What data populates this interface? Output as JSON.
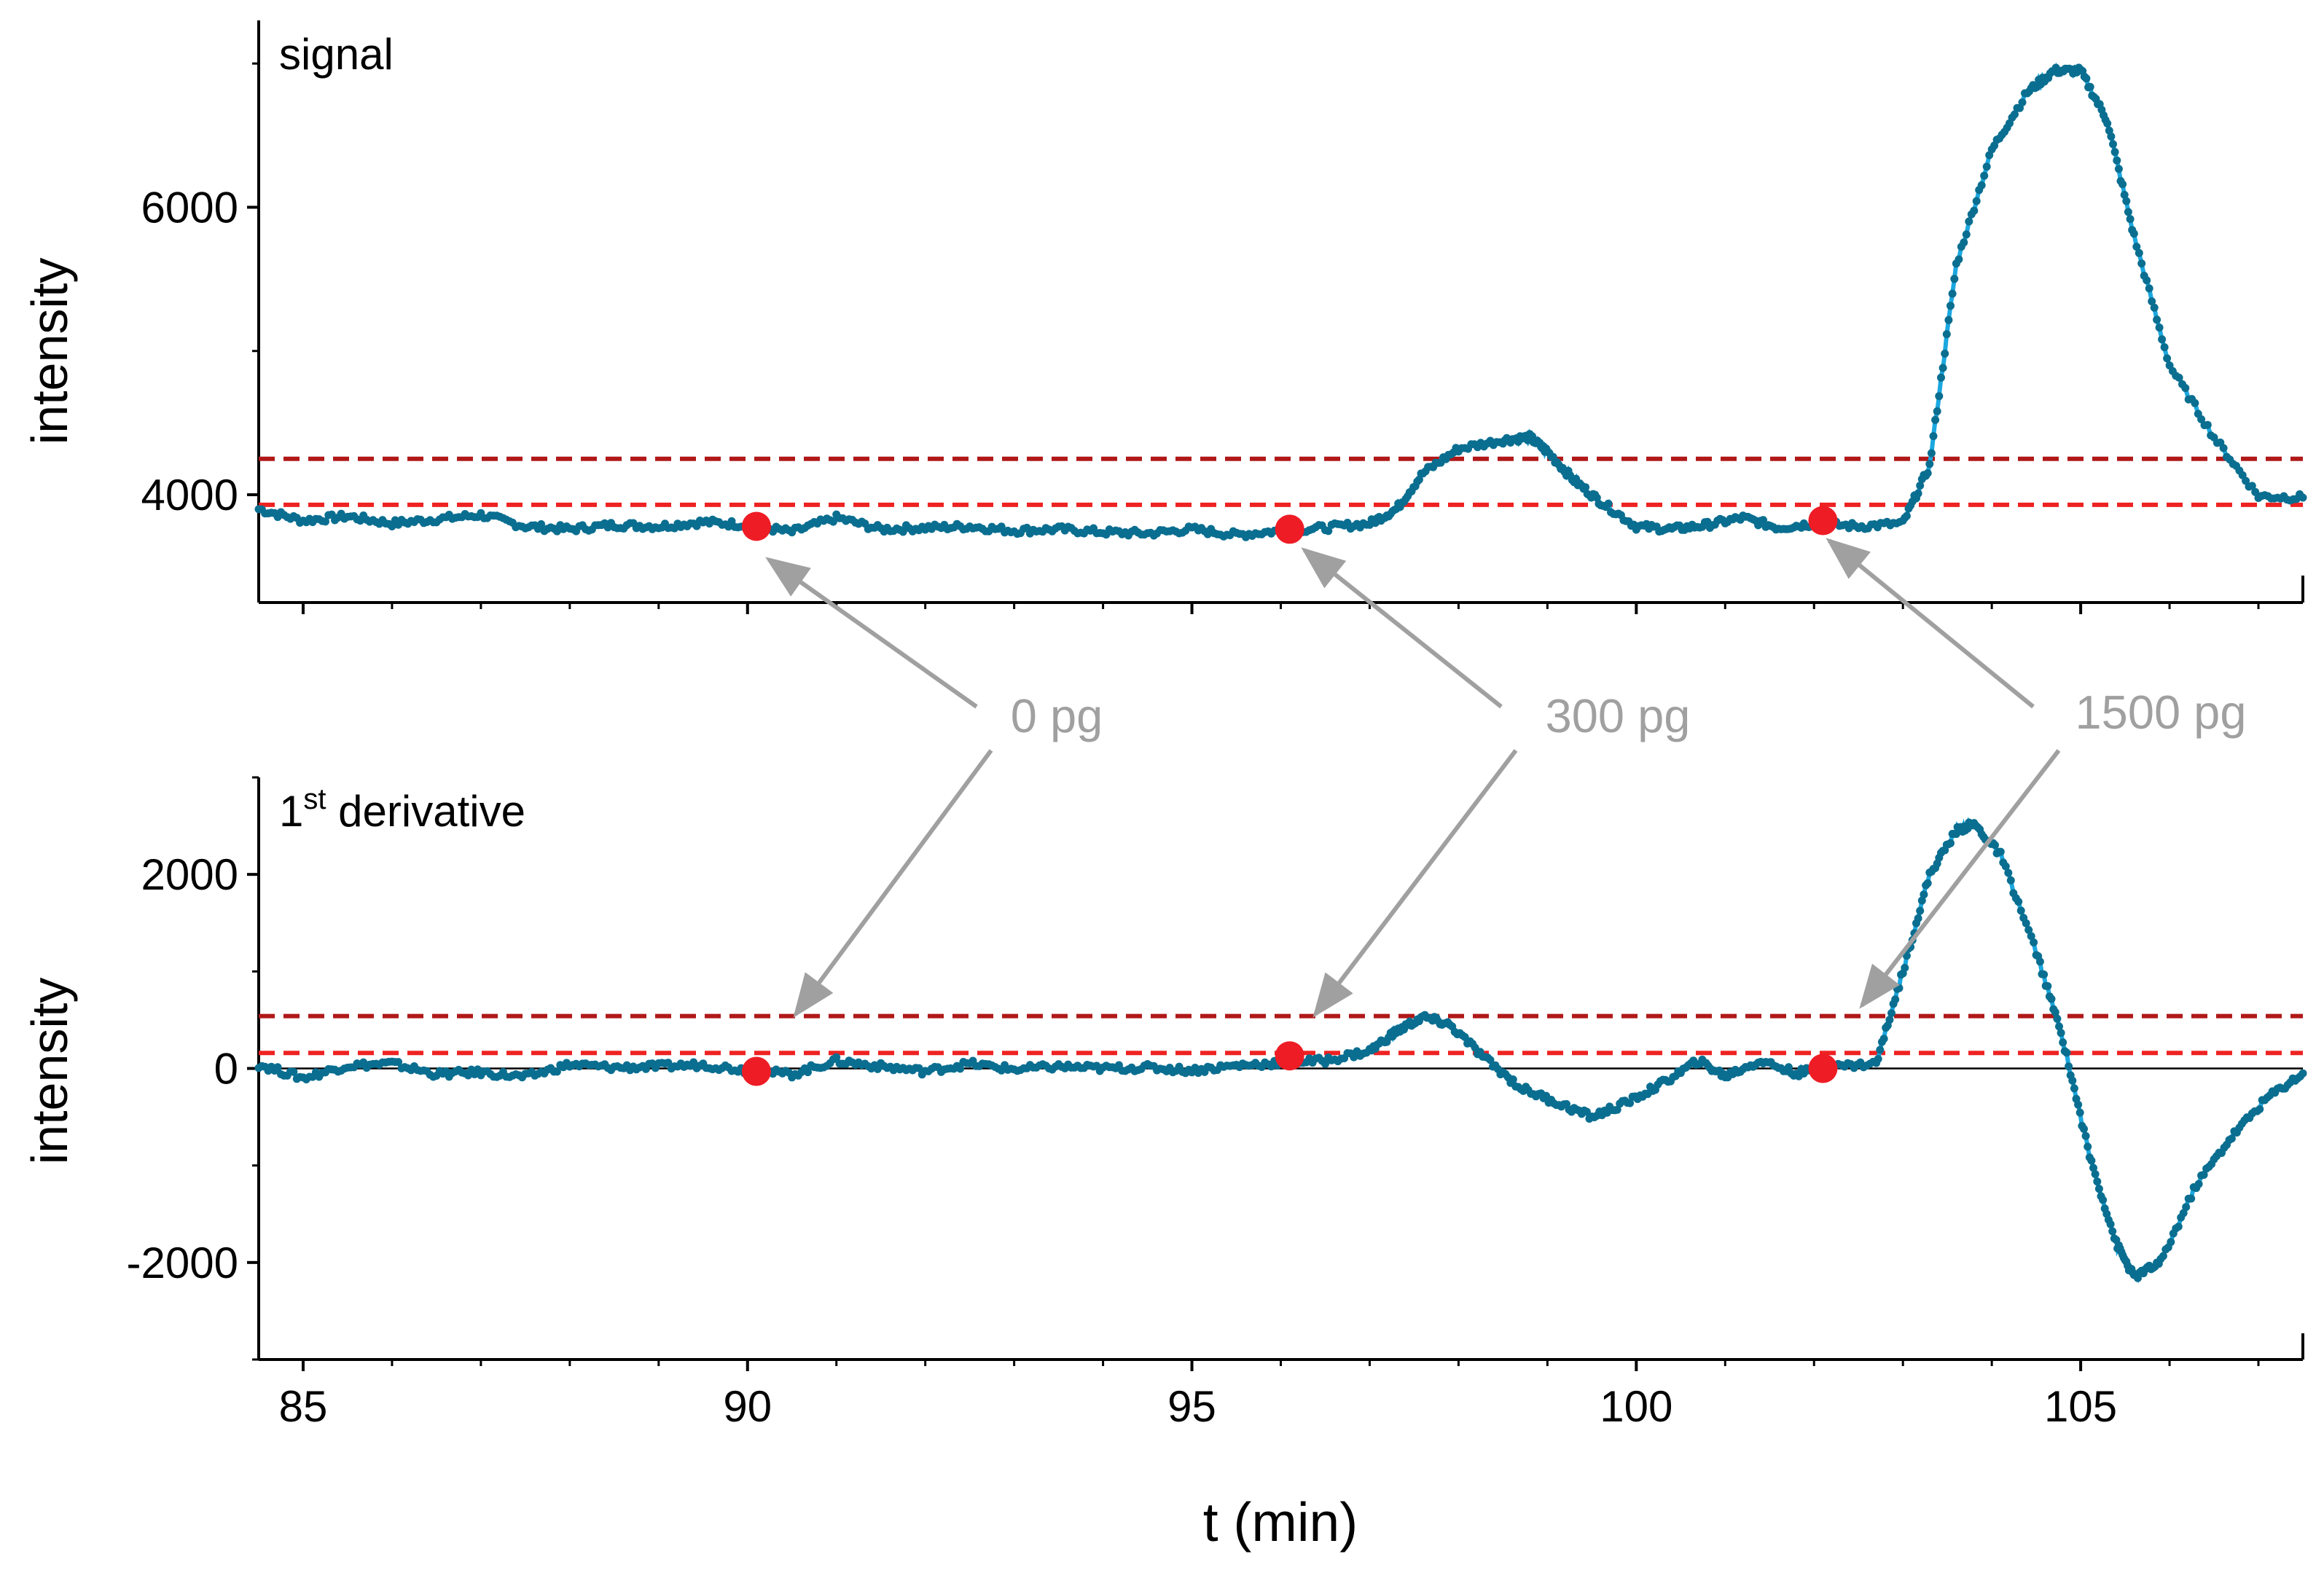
{
  "chart_data": [
    {
      "type": "line",
      "panel_label": "signal",
      "ylabel": "intensity",
      "xlabel": "",
      "xlim": [
        84.5,
        107.5
      ],
      "ylim": [
        3250,
        7300
      ],
      "yticks": [
        4000,
        6000
      ],
      "ytick_labels": [
        "4000",
        "6000"
      ],
      "threshold_lines": [
        {
          "name": "upper threshold",
          "y": 4250,
          "color": "#b01818"
        },
        {
          "name": "lower threshold",
          "y": 3930,
          "color": "#ee2222"
        }
      ],
      "markers": [
        {
          "x": 90.1,
          "y": 3780
        },
        {
          "x": 96.1,
          "y": 3760
        },
        {
          "x": 102.1,
          "y": 3820
        }
      ],
      "series": [
        {
          "name": "signal",
          "x": [
            84.5,
            85.0,
            85.5,
            86.0,
            86.5,
            87.0,
            87.5,
            88.0,
            88.5,
            89.0,
            89.5,
            90.0,
            90.5,
            91.0,
            91.5,
            92.0,
            92.5,
            93.0,
            93.5,
            94.0,
            94.5,
            95.0,
            95.5,
            96.0,
            96.5,
            97.0,
            97.3,
            97.6,
            98.0,
            98.5,
            98.8,
            99.0,
            99.3,
            99.6,
            100.0,
            100.4,
            100.8,
            101.2,
            101.6,
            102.0,
            102.5,
            103.0,
            103.3,
            103.6,
            104.0,
            104.4,
            104.7,
            105.0,
            105.3,
            105.6,
            106.0,
            106.5,
            107.0,
            107.5
          ],
          "y": [
            3900,
            3820,
            3850,
            3800,
            3830,
            3860,
            3780,
            3760,
            3790,
            3780,
            3810,
            3790,
            3740,
            3840,
            3760,
            3770,
            3780,
            3750,
            3760,
            3740,
            3730,
            3760,
            3720,
            3750,
            3770,
            3800,
            3900,
            4150,
            4320,
            4380,
            4400,
            4300,
            4100,
            3950,
            3780,
            3760,
            3790,
            3840,
            3770,
            3800,
            3780,
            3800,
            4200,
            5600,
            6400,
            6800,
            6950,
            6950,
            6600,
            5800,
            4900,
            4400,
            3990,
            3980
          ]
        }
      ]
    },
    {
      "type": "line",
      "panel_label": "1",
      "panel_label_sup": "st",
      "panel_label_rest": " derivative",
      "ylabel": "intensity",
      "xlabel": "t (min)",
      "xlim": [
        84.5,
        107.5
      ],
      "ylim": [
        -3000,
        3000
      ],
      "yticks": [
        -2000,
        0,
        2000
      ],
      "ytick_labels": [
        "-2000",
        "0",
        "2000"
      ],
      "xticks": [
        85,
        90,
        95,
        100,
        105
      ],
      "xtick_labels": [
        "85",
        "90",
        "95",
        "100",
        "105"
      ],
      "threshold_lines": [
        {
          "name": "upper threshold",
          "y": 540,
          "color": "#b01818"
        },
        {
          "name": "lower threshold",
          "y": 160,
          "color": "#ee2222"
        }
      ],
      "markers": [
        {
          "x": 90.1,
          "y": -30
        },
        {
          "x": 96.1,
          "y": 130
        },
        {
          "x": 102.1,
          "y": 0
        }
      ],
      "series": [
        {
          "name": "1st derivative",
          "x": [
            84.5,
            85.0,
            85.5,
            86.0,
            86.5,
            87.0,
            87.5,
            88.0,
            88.5,
            89.0,
            89.5,
            90.0,
            90.5,
            91.0,
            91.5,
            92.0,
            92.5,
            93.0,
            93.5,
            94.0,
            94.5,
            95.0,
            95.5,
            96.0,
            96.5,
            97.0,
            97.3,
            97.6,
            97.9,
            98.3,
            98.7,
            99.1,
            99.5,
            99.9,
            100.3,
            100.7,
            101.0,
            101.4,
            101.8,
            102.2,
            102.7,
            103.0,
            103.3,
            103.6,
            103.8,
            104.1,
            104.5,
            104.8,
            105.1,
            105.4,
            105.6,
            105.9,
            106.3,
            106.7,
            107.1,
            107.5
          ],
          "y": [
            40,
            -100,
            30,
            50,
            -60,
            -40,
            -90,
            40,
            10,
            20,
            40,
            -20,
            -60,
            80,
            20,
            -30,
            50,
            -10,
            20,
            0,
            10,
            -20,
            30,
            60,
            80,
            180,
            380,
            530,
            450,
            100,
            -200,
            -350,
            -500,
            -350,
            -150,
            80,
            -80,
            80,
            -50,
            20,
            50,
            1000,
            2000,
            2450,
            2520,
            2200,
            1200,
            300,
            -900,
            -1800,
            -2150,
            -2000,
            -1200,
            -700,
            -300,
            -50
          ]
        }
      ]
    }
  ],
  "annotations": [
    {
      "label": "0 pg"
    },
    {
      "label": "300 pg"
    },
    {
      "label": "1500 pg"
    }
  ]
}
